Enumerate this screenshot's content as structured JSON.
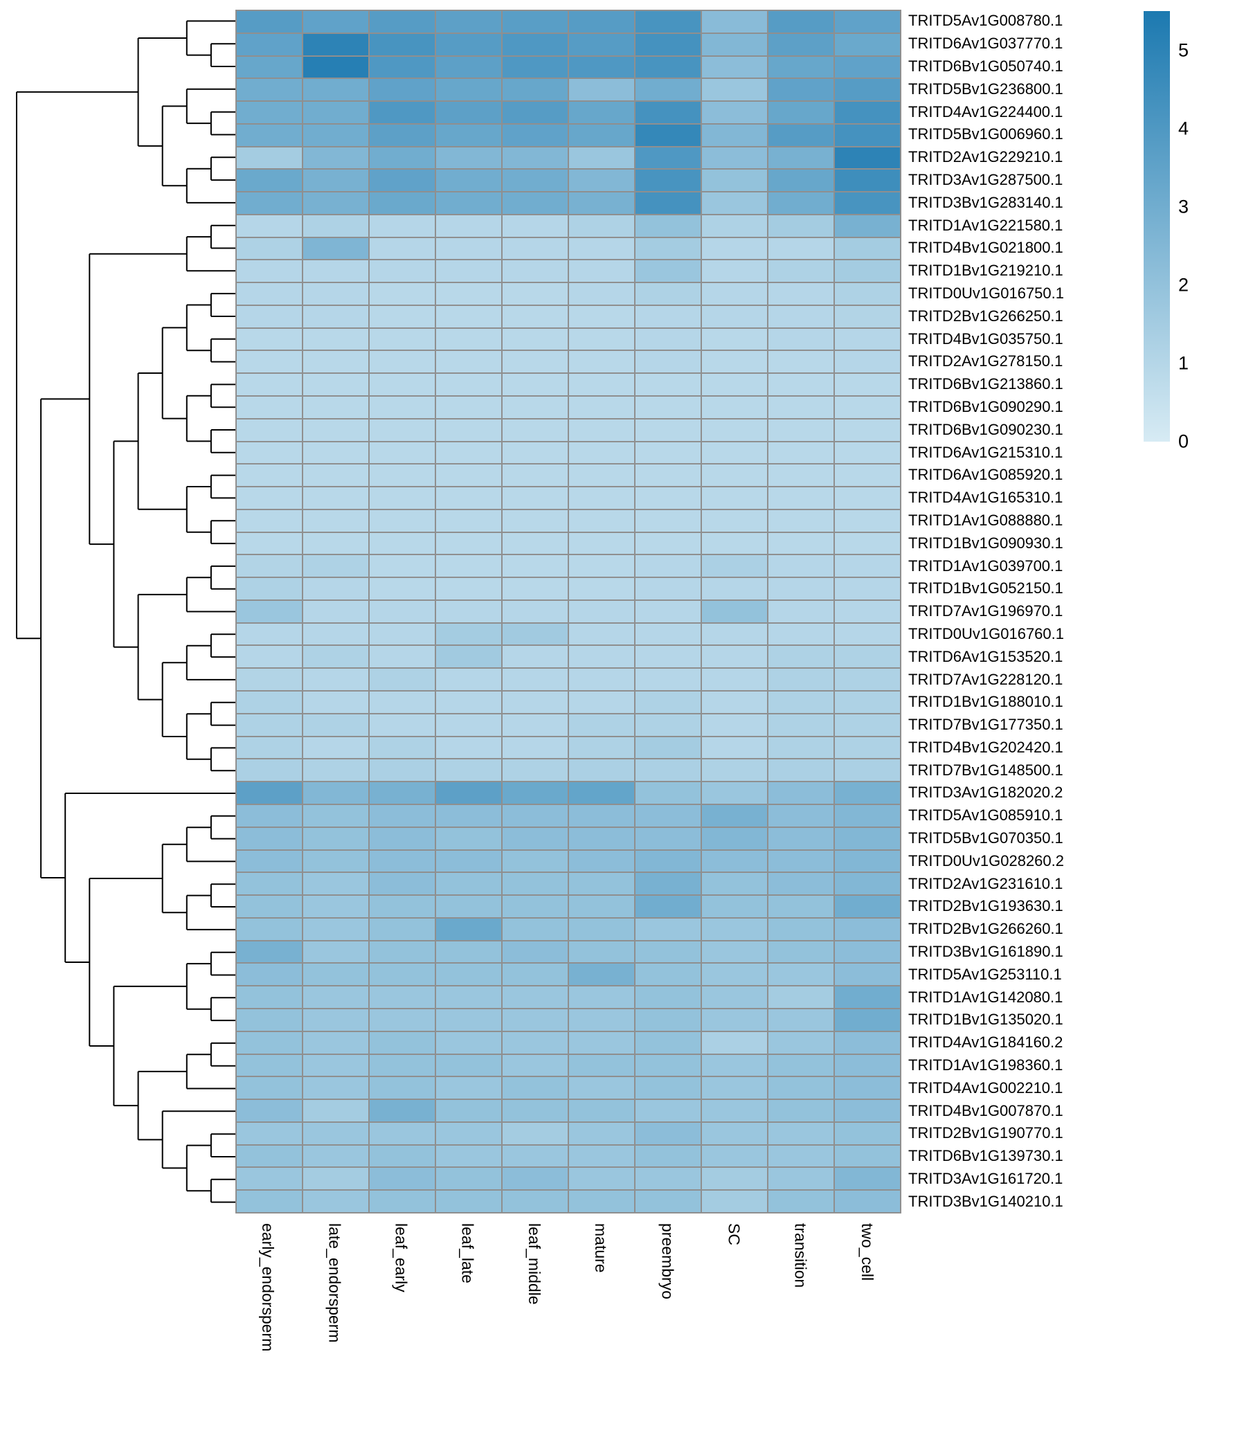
{
  "colors": {
    "background": "#ffffff",
    "cell_border": "#8f8f8f",
    "dendrogram_line": "#000000",
    "scale_low": "#d7ebf4",
    "scale_high": "#1c79b0"
  },
  "legend": {
    "tick_labels": [
      "5",
      "4",
      "3",
      "2",
      "1",
      "0"
    ],
    "tick_values": [
      5,
      4,
      3,
      2,
      1,
      0
    ]
  },
  "chart_data": {
    "type": "heatmap",
    "title": "",
    "legend_position": "right",
    "color_scale": {
      "min": 0,
      "max": 5.5,
      "low": "#d7ebf4",
      "high": "#1c79b0"
    },
    "columns": [
      "early_endorsperm",
      "late_endorsperm",
      "leaf_early",
      "leaf_late",
      "leaf_middle",
      "mature",
      "preembryo",
      "SC",
      "transition",
      "two_cell"
    ],
    "rows": [
      "TRITD5Av1G008780.1",
      "TRITD6Av1G037770.1",
      "TRITD6Bv1G050740.1",
      "TRITD5Bv1G236800.1",
      "TRITD4Av1G224400.1",
      "TRITD5Bv1G006960.1",
      "TRITD2Av1G229210.1",
      "TRITD3Av1G287500.1",
      "TRITD3Bv1G283140.1",
      "TRITD1Av1G221580.1",
      "TRITD4Bv1G021800.1",
      "TRITD1Bv1G219210.1",
      "TRITD0Uv1G016750.1",
      "TRITD2Bv1G266250.1",
      "TRITD4Bv1G035750.1",
      "TRITD2Av1G278150.1",
      "TRITD6Bv1G213860.1",
      "TRITD6Bv1G090290.1",
      "TRITD6Bv1G090230.1",
      "TRITD6Av1G215310.1",
      "TRITD6Av1G085920.1",
      "TRITD4Av1G165310.1",
      "TRITD1Av1G088880.1",
      "TRITD1Bv1G090930.1",
      "TRITD1Av1G039700.1",
      "TRITD1Bv1G052150.1",
      "TRITD7Av1G196970.1",
      "TRITD0Uv1G016760.1",
      "TRITD6Av1G153520.1",
      "TRITD7Av1G228120.1",
      "TRITD1Bv1G188010.1",
      "TRITD7Bv1G177350.1",
      "TRITD4Bv1G202420.1",
      "TRITD7Bv1G148500.1",
      "TRITD3Av1G182020.2",
      "TRITD5Av1G085910.1",
      "TRITD5Bv1G070350.1",
      "TRITD0Uv1G028260.2",
      "TRITD2Av1G231610.1",
      "TRITD2Bv1G193630.1",
      "TRITD2Bv1G266260.1",
      "TRITD3Bv1G161890.1",
      "TRITD5Av1G253110.1",
      "TRITD1Av1G142080.1",
      "TRITD1Bv1G135020.1",
      "TRITD4Av1G184160.2",
      "TRITD1Av1G198360.1",
      "TRITD4Av1G002210.1",
      "TRITD4Bv1G007870.1",
      "TRITD2Bv1G190770.1",
      "TRITD6Bv1G139730.1",
      "TRITD3Av1G161720.1",
      "TRITD3Bv1G140210.1"
    ],
    "values": [
      [
        3.8,
        3.5,
        3.8,
        3.6,
        3.7,
        3.8,
        4.2,
        2.3,
        3.8,
        3.5
      ],
      [
        3.5,
        5.0,
        4.2,
        3.8,
        4.0,
        3.8,
        4.3,
        2.5,
        3.6,
        3.2
      ],
      [
        3.3,
        5.2,
        4.0,
        3.6,
        4.0,
        4.0,
        4.2,
        2.2,
        3.3,
        3.5
      ],
      [
        3.0,
        3.0,
        3.5,
        3.3,
        3.3,
        2.2,
        3.0,
        1.8,
        3.5,
        3.8
      ],
      [
        3.0,
        3.0,
        4.0,
        3.6,
        3.8,
        3.3,
        4.3,
        2.2,
        3.3,
        4.3
      ],
      [
        3.0,
        3.0,
        3.6,
        3.3,
        3.5,
        3.3,
        4.8,
        2.5,
        3.8,
        4.3
      ],
      [
        1.5,
        2.5,
        3.0,
        2.5,
        2.5,
        1.8,
        4.0,
        2.2,
        2.8,
        5.0
      ],
      [
        3.2,
        2.8,
        3.5,
        3.0,
        3.0,
        2.5,
        4.2,
        2.0,
        3.3,
        4.5
      ],
      [
        3.0,
        2.8,
        3.2,
        3.0,
        3.0,
        2.8,
        4.3,
        1.8,
        3.0,
        4.2
      ],
      [
        1.0,
        1.2,
        1.0,
        1.0,
        1.0,
        1.2,
        2.0,
        1.2,
        1.5,
        2.8
      ],
      [
        1.2,
        2.6,
        1.0,
        1.0,
        1.0,
        1.0,
        1.5,
        1.0,
        1.0,
        1.5
      ],
      [
        1.0,
        1.0,
        1.0,
        1.0,
        1.0,
        1.0,
        1.8,
        1.0,
        1.2,
        1.5
      ],
      [
        1.0,
        1.0,
        0.9,
        0.9,
        0.9,
        1.0,
        1.2,
        1.0,
        1.0,
        1.2
      ],
      [
        1.0,
        1.0,
        0.9,
        0.9,
        0.9,
        0.9,
        1.0,
        1.0,
        1.0,
        1.1
      ],
      [
        0.9,
        0.9,
        0.9,
        0.9,
        0.9,
        0.9,
        1.0,
        0.9,
        1.0,
        1.0
      ],
      [
        0.9,
        0.9,
        0.9,
        0.9,
        0.9,
        0.9,
        1.0,
        0.9,
        0.9,
        1.0
      ],
      [
        0.9,
        0.9,
        0.9,
        0.9,
        0.9,
        0.9,
        0.9,
        0.9,
        0.9,
        0.9
      ],
      [
        0.9,
        0.9,
        0.9,
        0.9,
        0.9,
        0.9,
        0.9,
        0.9,
        0.9,
        0.9
      ],
      [
        0.9,
        0.9,
        0.9,
        0.9,
        0.9,
        0.9,
        0.9,
        0.9,
        0.9,
        0.9
      ],
      [
        0.9,
        0.9,
        0.9,
        0.9,
        0.9,
        0.9,
        0.9,
        0.9,
        0.9,
        0.9
      ],
      [
        0.9,
        0.9,
        0.9,
        0.9,
        0.9,
        0.9,
        0.9,
        0.9,
        0.9,
        0.9
      ],
      [
        0.9,
        0.9,
        0.9,
        0.9,
        0.9,
        0.9,
        0.9,
        0.9,
        0.9,
        0.9
      ],
      [
        0.9,
        0.9,
        0.9,
        0.9,
        0.9,
        0.9,
        0.9,
        0.9,
        0.9,
        0.9
      ],
      [
        0.9,
        0.9,
        0.9,
        0.9,
        0.9,
        0.9,
        0.9,
        0.9,
        0.9,
        0.9
      ],
      [
        1.1,
        1.2,
        0.9,
        0.9,
        0.9,
        0.9,
        1.0,
        1.3,
        1.0,
        1.0
      ],
      [
        1.2,
        1.0,
        0.9,
        0.9,
        0.9,
        0.9,
        1.0,
        1.0,
        1.0,
        1.0
      ],
      [
        1.8,
        1.0,
        1.0,
        1.0,
        1.0,
        1.0,
        1.0,
        2.0,
        1.0,
        1.0
      ],
      [
        1.0,
        1.0,
        1.0,
        1.5,
        1.6,
        1.0,
        1.0,
        1.0,
        1.0,
        1.0
      ],
      [
        1.0,
        1.2,
        1.0,
        1.6,
        1.0,
        1.0,
        1.0,
        1.0,
        1.2,
        1.2
      ],
      [
        1.1,
        1.0,
        1.2,
        1.0,
        1.0,
        1.0,
        1.0,
        1.0,
        1.2,
        1.2
      ],
      [
        1.2,
        1.0,
        1.0,
        1.0,
        1.0,
        1.0,
        1.2,
        1.0,
        1.2,
        1.2
      ],
      [
        1.2,
        1.2,
        1.0,
        1.0,
        1.0,
        1.2,
        1.2,
        1.0,
        1.2,
        1.2
      ],
      [
        1.2,
        1.0,
        1.2,
        1.0,
        1.0,
        1.2,
        1.5,
        1.0,
        1.2,
        1.2
      ],
      [
        1.3,
        1.2,
        1.3,
        1.2,
        1.2,
        1.3,
        1.3,
        1.2,
        1.3,
        1.3
      ],
      [
        3.6,
        2.5,
        2.8,
        3.6,
        3.2,
        3.4,
        2.0,
        1.8,
        2.2,
        2.8
      ],
      [
        2.2,
        2.0,
        2.2,
        2.2,
        2.2,
        2.2,
        2.2,
        2.8,
        2.2,
        2.5
      ],
      [
        2.2,
        2.0,
        2.2,
        2.0,
        2.2,
        2.2,
        2.2,
        2.5,
        2.2,
        2.5
      ],
      [
        2.2,
        2.0,
        2.2,
        2.2,
        2.0,
        2.2,
        2.5,
        2.2,
        2.2,
        2.5
      ],
      [
        2.0,
        1.8,
        2.2,
        2.0,
        2.0,
        2.0,
        2.8,
        2.0,
        2.2,
        2.5
      ],
      [
        2.0,
        1.8,
        2.0,
        2.0,
        2.0,
        2.0,
        3.0,
        2.0,
        2.0,
        3.0
      ],
      [
        2.0,
        1.8,
        2.0,
        3.2,
        2.0,
        2.0,
        1.8,
        1.8,
        2.0,
        2.2
      ],
      [
        2.8,
        1.8,
        2.0,
        2.0,
        2.2,
        2.0,
        2.0,
        1.8,
        2.0,
        2.2
      ],
      [
        2.2,
        2.0,
        2.0,
        2.0,
        2.0,
        2.8,
        2.0,
        1.8,
        1.8,
        2.2
      ],
      [
        2.0,
        1.8,
        1.8,
        1.8,
        1.8,
        1.8,
        2.0,
        1.8,
        1.5,
        3.0
      ],
      [
        2.0,
        1.8,
        1.8,
        1.8,
        1.8,
        1.8,
        2.0,
        1.8,
        1.8,
        3.0
      ],
      [
        2.0,
        1.8,
        2.0,
        1.8,
        1.8,
        1.8,
        2.0,
        1.3,
        1.8,
        2.2
      ],
      [
        2.0,
        1.8,
        2.0,
        2.0,
        1.8,
        2.0,
        2.0,
        1.8,
        2.0,
        2.2
      ],
      [
        2.0,
        1.8,
        2.0,
        1.8,
        2.0,
        1.8,
        2.0,
        1.8,
        2.0,
        2.2
      ],
      [
        2.2,
        1.5,
        2.8,
        2.0,
        2.0,
        2.0,
        1.8,
        1.8,
        2.0,
        2.2
      ],
      [
        1.8,
        1.8,
        1.8,
        1.8,
        1.5,
        1.8,
        2.2,
        1.8,
        1.8,
        2.0
      ],
      [
        2.0,
        1.8,
        2.0,
        1.8,
        1.8,
        1.8,
        2.0,
        1.8,
        1.8,
        2.0
      ],
      [
        1.8,
        1.5,
        2.2,
        2.0,
        2.2,
        1.8,
        1.8,
        1.5,
        1.8,
        2.5
      ],
      [
        2.0,
        1.8,
        2.0,
        2.0,
        2.0,
        2.0,
        2.0,
        1.5,
        2.0,
        2.2
      ]
    ],
    "row_dendrogram": [
      [
        [
          0,
          [
            1,
            2
          ]
        ],
        [
          [
            3,
            [
              4,
              5
            ]
          ],
          [
            [
              6,
              7
            ],
            8
          ]
        ]
      ],
      [
        [
          [
            [
              9,
              10
            ],
            11
          ],
          [
            [
              [
                [
                  [
                    12,
                    13
                  ],
                  [
                    14,
                    15
                  ]
                ],
                [
                  [
                    16,
                    17
                  ],
                  [
                    18,
                    19
                  ]
                ]
              ],
              [
                [
                  20,
                  21
                ],
                [
                  22,
                  23
                ]
              ]
            ],
            [
              [
                [
                  24,
                  25
                ],
                26
              ],
              [
                [
                  [
                    27,
                    28
                  ],
                  29
                ],
                [
                  [
                    30,
                    31
                  ],
                  [
                    32,
                    33
                  ]
                ]
              ]
            ]
          ]
        ],
        [
          34,
          [
            [
              [
                [
                  35,
                  36
                ],
                37
              ],
              [
                [
                  38,
                  39
                ],
                40
              ]
            ],
            [
              [
                [
                  41,
                  42
                ],
                [
                  43,
                  44
                ]
              ],
              [
                [
                  [
                    45,
                    46
                  ],
                  47
                ],
                [
                  48,
                  [
                    [
                      49,
                      50
                    ],
                    [
                      51,
                      52
                    ]
                  ]
                ]
              ]
            ]
          ]
        ]
      ]
    ]
  }
}
